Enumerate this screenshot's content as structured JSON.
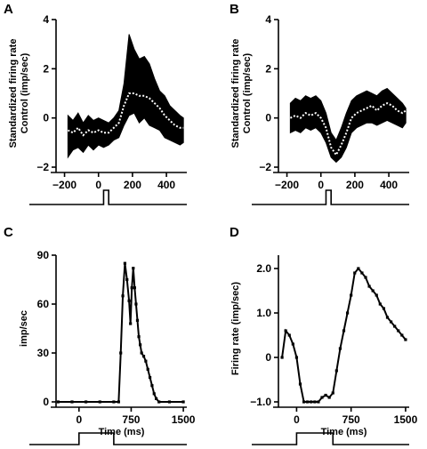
{
  "chart_data": [
    {
      "panel": "A",
      "type": "line",
      "title": "",
      "xlabel": "",
      "ylabel": [
        "Standardized firing rate",
        "Control (imp/sec)"
      ],
      "xlim": [
        -250,
        520
      ],
      "ylim": [
        -2,
        4
      ],
      "xticks": [
        -200,
        0,
        200,
        400
      ],
      "yticks": [
        -2,
        0,
        2,
        4
      ],
      "x": [
        -180,
        -150,
        -120,
        -90,
        -60,
        -30,
        0,
        30,
        60,
        90,
        120,
        150,
        180,
        210,
        240,
        270,
        300,
        330,
        360,
        390,
        420,
        450,
        480,
        500
      ],
      "series": [
        {
          "role": "upper",
          "values": [
            0.1,
            -0.1,
            0.2,
            -0.2,
            0.1,
            -0.1,
            0.0,
            -0.1,
            -0.2,
            0.0,
            0.3,
            1.4,
            3.4,
            2.8,
            2.4,
            2.5,
            2.2,
            1.6,
            1.1,
            0.9,
            0.5,
            0.3,
            0.1,
            0.0
          ]
        },
        {
          "role": "mean",
          "values": [
            -0.5,
            -0.6,
            -0.4,
            -0.7,
            -0.5,
            -0.6,
            -0.5,
            -0.6,
            -0.6,
            -0.4,
            -0.2,
            0.5,
            1.0,
            1.0,
            0.9,
            0.9,
            0.8,
            0.6,
            0.4,
            0.1,
            -0.1,
            -0.3,
            -0.4,
            -0.4
          ]
        },
        {
          "role": "lower",
          "values": [
            -1.6,
            -1.3,
            -1.2,
            -1.4,
            -1.1,
            -1.3,
            -1.1,
            -1.2,
            -1.1,
            -0.9,
            -0.8,
            -0.3,
            0.1,
            0.2,
            -0.2,
            0.0,
            -0.3,
            -0.4,
            -0.5,
            -0.8,
            -0.9,
            -1.0,
            -1.1,
            -1.0
          ]
        }
      ],
      "stimulus": {
        "onset": 30,
        "offset": 60
      }
    },
    {
      "panel": "B",
      "type": "line",
      "title": "",
      "xlabel": "",
      "ylabel": [
        "Standardized firing rate",
        "Control (imp/sec)"
      ],
      "xlim": [
        -250,
        520
      ],
      "ylim": [
        -2,
        4
      ],
      "xticks": [
        -200,
        0,
        200,
        400
      ],
      "yticks": [
        -2,
        0,
        2,
        4
      ],
      "x": [
        -180,
        -150,
        -120,
        -90,
        -60,
        -30,
        0,
        30,
        60,
        90,
        120,
        150,
        180,
        210,
        240,
        270,
        300,
        330,
        360,
        390,
        420,
        450,
        480,
        500
      ],
      "series": [
        {
          "role": "upper",
          "values": [
            0.6,
            0.8,
            0.7,
            0.9,
            0.8,
            0.9,
            0.7,
            0.2,
            -0.6,
            -0.9,
            -0.4,
            0.2,
            0.7,
            0.9,
            1.0,
            1.1,
            1.0,
            0.9,
            1.1,
            1.2,
            1.0,
            0.8,
            0.6,
            0.4
          ]
        },
        {
          "role": "mean",
          "values": [
            0.0,
            0.1,
            0.0,
            0.2,
            0.1,
            0.2,
            0.0,
            -0.4,
            -1.2,
            -1.5,
            -1.1,
            -0.6,
            0.0,
            0.2,
            0.3,
            0.4,
            0.5,
            0.3,
            0.5,
            0.6,
            0.5,
            0.3,
            0.2,
            0.3
          ]
        },
        {
          "role": "lower",
          "values": [
            -0.6,
            -0.5,
            -0.6,
            -0.4,
            -0.5,
            -0.4,
            -0.6,
            -1.0,
            -1.6,
            -1.8,
            -1.6,
            -1.2,
            -0.6,
            -0.4,
            -0.3,
            -0.2,
            -0.2,
            -0.3,
            -0.2,
            -0.1,
            -0.2,
            -0.3,
            -0.4,
            -0.2
          ]
        }
      ],
      "stimulus": {
        "onset": 30,
        "offset": 60
      }
    },
    {
      "panel": "C",
      "type": "line",
      "title": "",
      "xlabel": "Time (ms)",
      "ylabel": "imp/sec",
      "xlim": [
        -330,
        1550
      ],
      "ylim": [
        0,
        90
      ],
      "xticks": [
        0,
        750,
        1500
      ],
      "yticks": [
        0,
        30,
        60,
        90
      ],
      "x": [
        -300,
        -100,
        100,
        300,
        500,
        570,
        600,
        630,
        660,
        690,
        720,
        740,
        760,
        780,
        800,
        820,
        840,
        860,
        880,
        900,
        930,
        960,
        990,
        1020,
        1050,
        1080,
        1110,
        1150,
        1300,
        1500
      ],
      "values": [
        0,
        0,
        0,
        0,
        0,
        0,
        30,
        65,
        85,
        75,
        62,
        48,
        70,
        82,
        70,
        60,
        50,
        40,
        35,
        30,
        28,
        25,
        20,
        15,
        10,
        5,
        2,
        0,
        0,
        0
      ],
      "stimulus": {
        "onset": 0,
        "offset": 500
      }
    },
    {
      "panel": "D",
      "type": "line",
      "title": "",
      "xlabel": "Time (ms)",
      "ylabel": "Firing rate (imp/sec)",
      "xlim": [
        -250,
        1550
      ],
      "ylim": [
        -1.0,
        2.3
      ],
      "xticks": [
        0,
        750,
        1500
      ],
      "yticks": [
        -1.0,
        0,
        1.0,
        2.0
      ],
      "ytick_labels": [
        "−1.0",
        "0",
        "1.0",
        "2.0"
      ],
      "x": [
        -200,
        -150,
        -100,
        -50,
        0,
        50,
        100,
        150,
        200,
        250,
        300,
        350,
        400,
        450,
        500,
        550,
        600,
        650,
        700,
        750,
        800,
        850,
        900,
        950,
        1000,
        1050,
        1100,
        1150,
        1200,
        1250,
        1300,
        1350,
        1400,
        1450,
        1500
      ],
      "values": [
        0.0,
        0.6,
        0.5,
        0.3,
        0.0,
        -0.6,
        -1.0,
        -1.0,
        -1.0,
        -1.0,
        -1.0,
        -0.9,
        -0.85,
        -0.9,
        -0.8,
        -0.3,
        0.2,
        0.6,
        1.0,
        1.4,
        1.9,
        2.0,
        1.9,
        1.8,
        1.6,
        1.5,
        1.4,
        1.2,
        1.1,
        0.9,
        0.8,
        0.7,
        0.6,
        0.5,
        0.4
      ],
      "stimulus": {
        "onset": 0,
        "offset": 500
      }
    }
  ]
}
